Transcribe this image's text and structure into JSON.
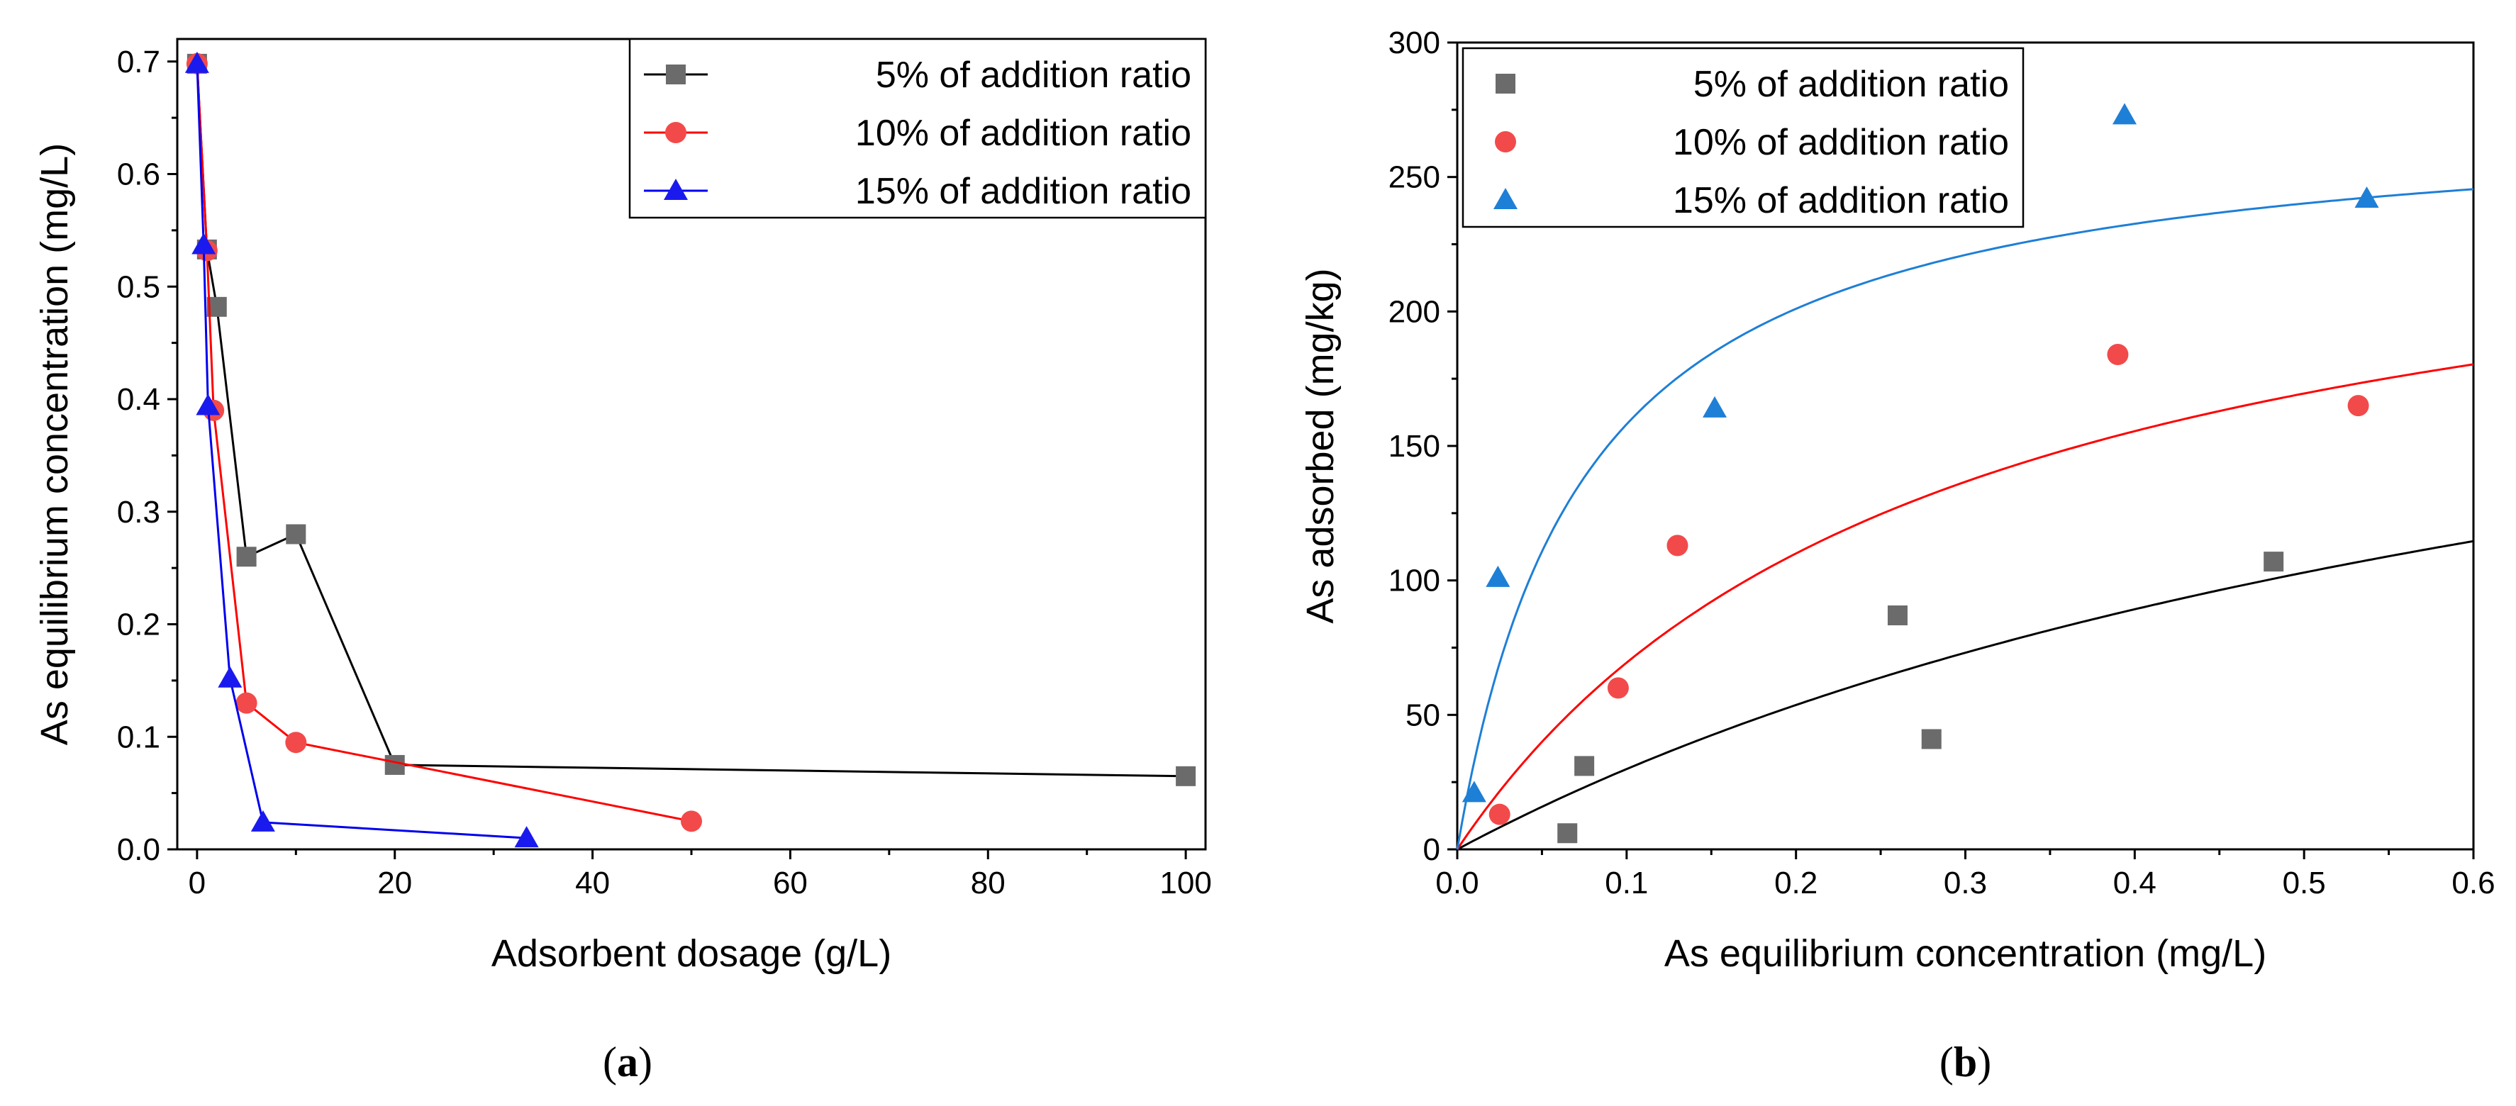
{
  "chart_data": [
    {
      "type": "line",
      "caption": {
        "open": "(",
        "letter": "a",
        "close": ")"
      },
      "xlabel": "Adsorbent dosage (g/L)",
      "ylabel": "As equilibrium concentration (mg/L)",
      "xlim": [
        -2,
        102
      ],
      "ylim": [
        0,
        0.72
      ],
      "xticks": [
        0,
        20,
        40,
        60,
        80,
        100
      ],
      "yticks": [
        0.0,
        0.1,
        0.2,
        0.3,
        0.4,
        0.5,
        0.6,
        0.7
      ],
      "legend_position": "top-right",
      "series": [
        {
          "name": "5% of addition ratio",
          "marker": "square",
          "color": "#000000",
          "marker_color": "#6b6b6b",
          "x": [
            0,
            1,
            2,
            5,
            10,
            20,
            100
          ],
          "y": [
            0.698,
            0.533,
            0.482,
            0.26,
            0.28,
            0.075,
            0.065
          ]
        },
        {
          "name": "10% of addition ratio",
          "marker": "circle",
          "color": "#ff0000",
          "marker_color": "#f24a4a",
          "x": [
            0,
            1,
            1.67,
            5,
            10,
            50
          ],
          "y": [
            0.698,
            0.532,
            0.39,
            0.13,
            0.095,
            0.025
          ]
        },
        {
          "name": "15% of addition ratio",
          "marker": "triangle",
          "color": "#0000ee",
          "marker_color": "#1a1aee",
          "x": [
            0,
            0.67,
            1.11,
            3.33,
            6.67,
            33.33
          ],
          "y": [
            0.698,
            0.537,
            0.394,
            0.152,
            0.024,
            0.01
          ]
        }
      ]
    },
    {
      "type": "scatter",
      "caption": {
        "open": "(",
        "letter": "b",
        "close": ")"
      },
      "xlabel": "As equilibrium concentration (mg/L)",
      "ylabel": "As adsorbed (mg/kg)",
      "xlim": [
        0,
        0.6
      ],
      "ylim": [
        0,
        300
      ],
      "xticks": [
        "0.0",
        "0.1",
        "0.2",
        "0.3",
        "0.4",
        "0.5",
        "0.6"
      ],
      "yticks": [
        0,
        50,
        100,
        150,
        200,
        250,
        300
      ],
      "legend_position": "top-left",
      "series": [
        {
          "name": "5% of addition ratio",
          "marker": "square",
          "color": "#6b6b6b",
          "x": [
            0.065,
            0.075,
            0.26,
            0.28,
            0.482
          ],
          "y": [
            6,
            31,
            87,
            41,
            107
          ]
        },
        {
          "name": "10% of addition ratio",
          "marker": "circle",
          "color": "#f24a4a",
          "x": [
            0.025,
            0.095,
            0.13,
            0.39,
            0.532
          ],
          "y": [
            13,
            60,
            113,
            184,
            165
          ]
        },
        {
          "name": "15% of addition ratio",
          "marker": "triangle",
          "color": "#1e7fd6",
          "x": [
            0.01,
            0.024,
            0.152,
            0.394,
            0.537
          ],
          "y": [
            21,
            101,
            164,
            273,
            242
          ]
        }
      ],
      "fits": [
        {
          "for": "5% of addition ratio",
          "color": "#000000",
          "qmax": 265,
          "K": 1.27
        },
        {
          "for": "10% of addition ratio",
          "color": "#ff0000",
          "qmax": 265,
          "K": 3.55
        },
        {
          "for": "15% of addition ratio",
          "color": "#1e7fd6",
          "qmax": 276,
          "K": 13.4
        }
      ]
    }
  ]
}
